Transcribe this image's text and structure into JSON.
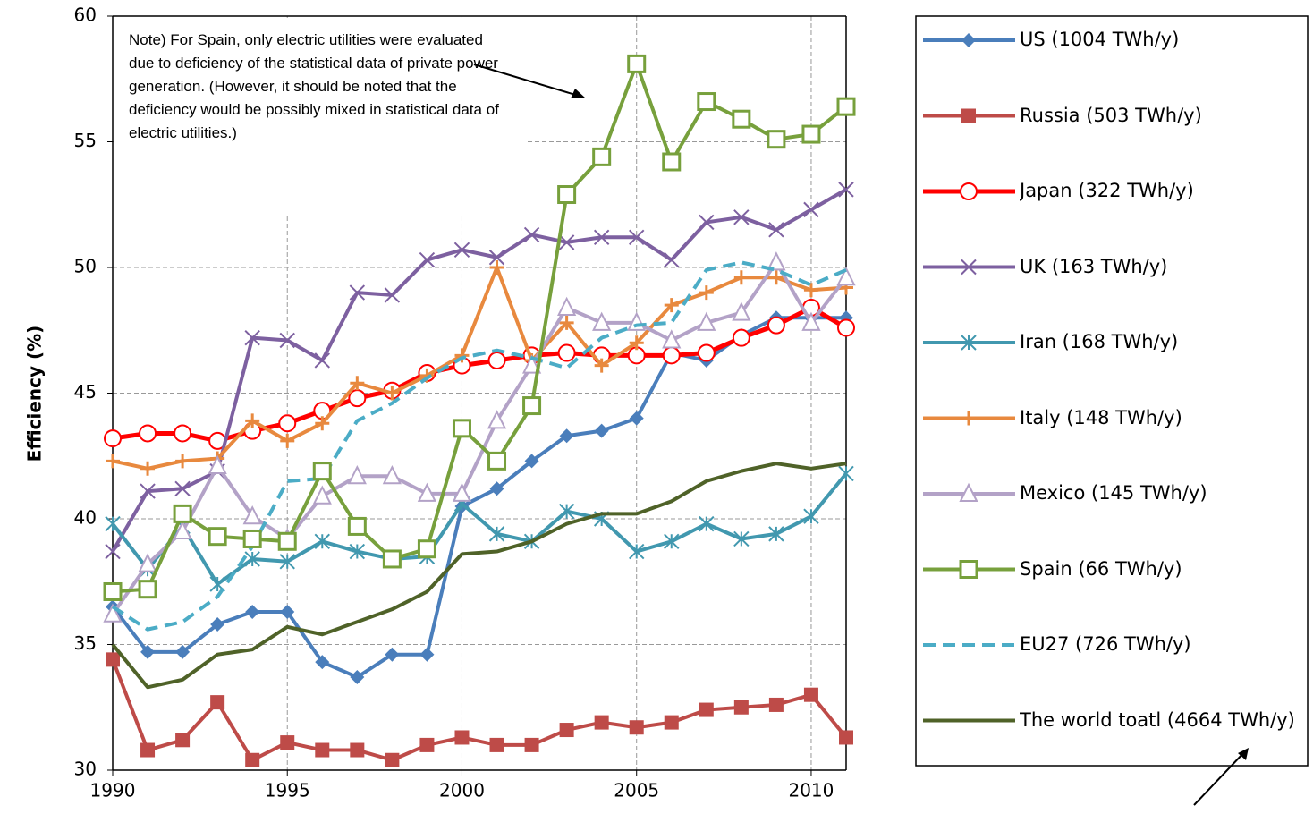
{
  "chart_data": {
    "type": "line",
    "y_label": "Efficiency (%)",
    "annotation": "Note) For Spain, only electric utilities were evaluated due to deficiency of the statistical data of private power generation. (However, it should be noted that the deficiency would be possibly mixed in statistical data of electric utilities.)",
    "x": [
      1990,
      1991,
      1992,
      1993,
      1994,
      1995,
      1996,
      1997,
      1998,
      1999,
      2000,
      2001,
      2002,
      2003,
      2004,
      2005,
      2006,
      2007,
      2008,
      2009,
      2010,
      2011
    ],
    "xlim": [
      1990,
      2011
    ],
    "xticks": [
      1990,
      1995,
      2000,
      2005,
      2010
    ],
    "ylim": [
      30,
      60
    ],
    "yticks": [
      30,
      35,
      40,
      45,
      50,
      55,
      60
    ],
    "grid": true,
    "legend": "right",
    "series": [
      {
        "name": "US (1004 TWh/y)",
        "color": "#4a7ebb",
        "marker": "diamond",
        "values": [
          36.5,
          34.7,
          34.7,
          35.8,
          36.3,
          36.3,
          34.3,
          33.7,
          34.6,
          34.6,
          40.5,
          41.2,
          42.3,
          43.3,
          43.5,
          44.0,
          46.6,
          46.3,
          47.3,
          48.0,
          48.0,
          48.0
        ]
      },
      {
        "name": "Russia (503 TWh/y)",
        "color": "#be4b48",
        "marker": "square",
        "values": [
          34.4,
          30.8,
          31.2,
          32.7,
          30.4,
          31.1,
          30.8,
          30.8,
          30.4,
          31.0,
          31.3,
          31.0,
          31.0,
          31.6,
          31.9,
          31.7,
          31.9,
          32.4,
          32.5,
          32.6,
          33.0,
          31.3
        ]
      },
      {
        "name": "Japan (322 TWh/y)",
        "color": "#ff0000",
        "marker": "circle",
        "values": [
          43.2,
          43.4,
          43.4,
          43.1,
          43.5,
          43.8,
          44.3,
          44.8,
          45.1,
          45.8,
          46.1,
          46.3,
          46.5,
          46.6,
          46.5,
          46.5,
          46.5,
          46.6,
          47.2,
          47.7,
          48.4,
          47.6
        ]
      },
      {
        "name": "UK (163 TWh/y)",
        "color": "#7d60a0",
        "marker": "x",
        "values": [
          38.7,
          41.1,
          41.2,
          41.9,
          47.2,
          47.1,
          46.3,
          49.0,
          48.9,
          50.3,
          50.7,
          50.4,
          51.3,
          51.0,
          51.2,
          51.2,
          50.3,
          51.8,
          52.0,
          51.5,
          52.3,
          53.1
        ]
      },
      {
        "name": "Iran (168 TWh/y)",
        "color": "#4198af",
        "marker": "star",
        "values": [
          39.8,
          38.0,
          39.7,
          37.4,
          38.4,
          38.3,
          39.1,
          38.7,
          38.4,
          38.5,
          40.6,
          39.4,
          39.1,
          40.3,
          40.0,
          38.7,
          39.1,
          39.8,
          39.2,
          39.4,
          40.1,
          41.8
        ]
      },
      {
        "name": "Italy (148 TWh/y)",
        "color": "#e8893e",
        "marker": "plus",
        "values": [
          42.3,
          42.0,
          42.3,
          42.4,
          43.9,
          43.1,
          43.8,
          45.4,
          45.0,
          45.7,
          46.5,
          50.0,
          46.3,
          47.8,
          46.1,
          47.0,
          48.5,
          49.0,
          49.6,
          49.6,
          49.1,
          49.2
        ]
      },
      {
        "name": "Mexico (145 TWh/y)",
        "color": "#b3a2c7",
        "marker": "triangle",
        "values": [
          36.2,
          38.2,
          39.5,
          42.1,
          40.1,
          39.2,
          40.9,
          41.7,
          41.7,
          41.0,
          41.0,
          43.9,
          46.1,
          48.4,
          47.8,
          47.8,
          47.1,
          47.8,
          48.2,
          50.2,
          47.8,
          49.6
        ]
      },
      {
        "name": "EU27 (726 TWh/y)",
        "color": "#4bacc6",
        "marker": "none",
        "dash": true,
        "values": [
          36.5,
          35.6,
          35.9,
          36.9,
          38.9,
          41.5,
          41.6,
          43.9,
          44.6,
          45.6,
          46.4,
          46.7,
          46.4,
          46.0,
          47.2,
          47.7,
          47.8,
          49.9,
          50.2,
          49.9,
          49.3,
          49.9
        ]
      },
      {
        "name": "The world toatl (4664 TWh/y)",
        "color": "#4f6228",
        "marker": "none",
        "values": [
          35.0,
          33.3,
          33.6,
          34.6,
          34.8,
          35.7,
          35.4,
          35.9,
          36.4,
          37.1,
          38.6,
          38.7,
          39.1,
          39.8,
          40.2,
          40.2,
          40.7,
          41.5,
          41.9,
          42.2,
          42.0,
          42.2
        ]
      },
      {
        "name": "Spain (66 TWh/y)",
        "color": "#77a03c",
        "marker": "opensquare",
        "values": [
          37.1,
          37.2,
          40.2,
          39.3,
          39.2,
          39.1,
          41.9,
          39.7,
          38.4,
          38.8,
          43.6,
          42.3,
          44.5,
          52.9,
          54.4,
          58.1,
          54.2,
          56.6,
          55.9,
          55.1,
          55.3,
          56.4
        ]
      }
    ]
  }
}
